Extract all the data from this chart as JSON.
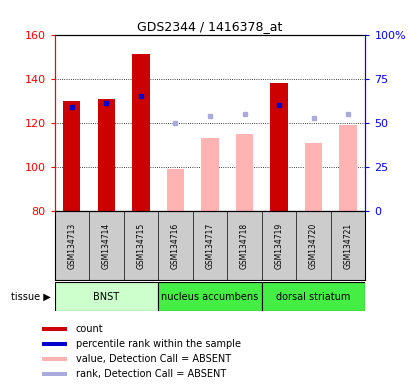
{
  "title": "GDS2344 / 1416378_at",
  "samples": [
    "GSM134713",
    "GSM134714",
    "GSM134715",
    "GSM134716",
    "GSM134717",
    "GSM134718",
    "GSM134719",
    "GSM134720",
    "GSM134721"
  ],
  "bar_values": [
    130,
    131,
    151,
    null,
    null,
    null,
    138,
    null,
    null
  ],
  "bar_absent_values": [
    null,
    null,
    null,
    99,
    113,
    115,
    null,
    111,
    119
  ],
  "rank_present": [
    127,
    129,
    132,
    null,
    null,
    null,
    128,
    null,
    null
  ],
  "rank_absent": [
    null,
    null,
    null,
    120,
    123,
    124,
    null,
    122,
    124
  ],
  "ylim_left": [
    80,
    160
  ],
  "ylim_right": [
    0,
    100
  ],
  "yticks_left": [
    80,
    100,
    120,
    140,
    160
  ],
  "yticks_right": [
    0,
    25,
    50,
    75,
    100
  ],
  "ytick_labels_left": [
    "80",
    "100",
    "120",
    "140",
    "160"
  ],
  "ytick_labels_right": [
    "0",
    "25",
    "50",
    "75",
    "100%"
  ],
  "bar_color": "#cc0000",
  "bar_absent_color": "#ffb3b3",
  "rank_present_color": "#0000cc",
  "rank_absent_color": "#aaaadd",
  "tissue_groups": [
    {
      "label": "BNST",
      "start": 0,
      "end": 3,
      "color": "#ccffcc"
    },
    {
      "label": "nucleus accumbens",
      "start": 3,
      "end": 6,
      "color": "#44ee44"
    },
    {
      "label": "dorsal striatum",
      "start": 6,
      "end": 9,
      "color": "#44ee44"
    }
  ],
  "tissue_label": "tissue",
  "legend_items": [
    {
      "label": "count",
      "color": "#cc0000"
    },
    {
      "label": "percentile rank within the sample",
      "color": "#0000cc"
    },
    {
      "label": "value, Detection Call = ABSENT",
      "color": "#ffb3b3"
    },
    {
      "label": "rank, Detection Call = ABSENT",
      "color": "#aaaadd"
    }
  ],
  "grid_color": "#555555",
  "bg_color": "#ffffff",
  "sample_bg_color": "#cccccc",
  "bar_width": 0.5
}
